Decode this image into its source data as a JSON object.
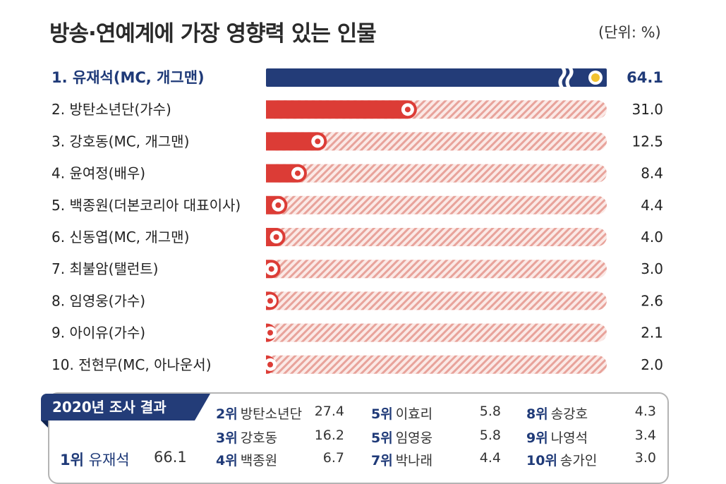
{
  "title": "방송·연예계에 가장 영향력 있는 인물",
  "unit": "(단위: %)",
  "chart_data": {
    "type": "bar",
    "orientation": "horizontal",
    "categories": [
      "1. 유재석(MC, 개그맨)",
      "2. 방탄소년단(가수)",
      "3. 강호동(MC, 개그맨)",
      "4. 윤여정(배우)",
      "5. 백종원(더본코리아 대표이사)",
      "6. 신동엽(MC, 개그맨)",
      "7. 최불암(탤런트)",
      "8. 임영웅(가수)",
      "9. 아이유(가수)",
      "10. 전현무(MC, 아나운서)"
    ],
    "values": [
      64.1,
      31.0,
      12.5,
      8.4,
      4.4,
      4.0,
      3.0,
      2.6,
      2.1,
      2.0
    ],
    "value_labels": [
      "64.1",
      "31.0",
      "12.5",
      "8.4",
      "4.4",
      "4.0",
      "3.0",
      "2.6",
      "2.1",
      "2.0"
    ],
    "xlim": [
      0,
      64.1
    ],
    "axis_break_on_first_bar": true,
    "colors": {
      "first_bar": "#233c78",
      "bar": "#dc3c36",
      "track_stripe": "#e8a39b",
      "track_bg": "#fbe9e6",
      "marker_first": "#f2c230"
    }
  },
  "survey_2020": {
    "title": "2020년 조사 결과",
    "items": [
      {
        "rank": "1위",
        "name": "유재석",
        "value": "66.1"
      },
      {
        "rank": "2위",
        "name": "방탄소년단",
        "value": "27.4"
      },
      {
        "rank": "3위",
        "name": "강호동",
        "value": "16.2"
      },
      {
        "rank": "4위",
        "name": "백종원",
        "value": "6.7"
      },
      {
        "rank": "5위",
        "name": "이효리",
        "value": "5.8"
      },
      {
        "rank": "5위",
        "name": "임영웅",
        "value": "5.8"
      },
      {
        "rank": "7위",
        "name": "박나래",
        "value": "4.4"
      },
      {
        "rank": "8위",
        "name": "송강호",
        "value": "4.3"
      },
      {
        "rank": "9위",
        "name": "나영석",
        "value": "3.4"
      },
      {
        "rank": "10위",
        "name": "송가인",
        "value": "3.0"
      }
    ]
  }
}
